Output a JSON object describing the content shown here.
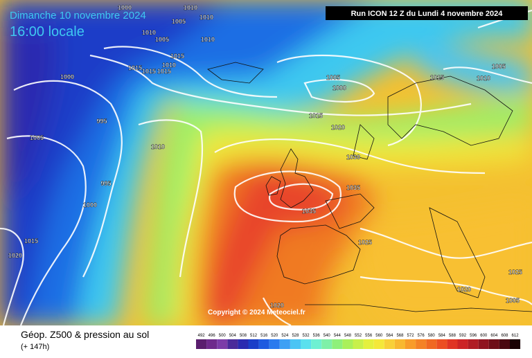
{
  "header": {
    "valid_date": "Dimanche 10 novembre 2024",
    "local_time": "16:00 locale",
    "run": "Run ICON 12 Z du Lundi 4 novembre 2024"
  },
  "map": {
    "copyright": "Copyright © 2024 Meteociel.fr",
    "isobar_labels": [
      "1000",
      "1010",
      "1010",
      "1005",
      "1010",
      "1005",
      "1010",
      "1015",
      "1010",
      "1015",
      "1015",
      "1015",
      "1000",
      "1005",
      "1000",
      "1015",
      "1010",
      "1005",
      "995",
      "1005",
      "1015",
      "1020",
      "1010",
      "1030",
      "995",
      "1035",
      "1000",
      "1035",
      "1015",
      "1025",
      "1020",
      "1025",
      "1020",
      "1005",
      "1020"
    ]
  },
  "footer": {
    "title": "Géop. Z500 & pression au sol",
    "lead": "(+ 147h)"
  },
  "legend": {
    "values": [
      492,
      496,
      500,
      504,
      508,
      512,
      516,
      520,
      524,
      528,
      532,
      536,
      540,
      544,
      548,
      552,
      556,
      560,
      564,
      568,
      572,
      576,
      580,
      584,
      588,
      592,
      596,
      600,
      604,
      608,
      612
    ],
    "colors": [
      "#5a1e6e",
      "#6e2a8c",
      "#7c3ca8",
      "#4a2a9a",
      "#2a2ab0",
      "#1a3ec8",
      "#1e5ae0",
      "#2a7aee",
      "#3ea0f4",
      "#4ac4f4",
      "#5ae0ee",
      "#6ef0d2",
      "#7ef0a8",
      "#8ef07a",
      "#aaf05a",
      "#c8f04a",
      "#e4f03e",
      "#f4e83a",
      "#f8d038",
      "#f8b830",
      "#f89c2a",
      "#f48226",
      "#f06822",
      "#ec4e22",
      "#e03424",
      "#cc2426",
      "#b01c24",
      "#901420",
      "#6e0e18",
      "#4a0810",
      "#1a0204"
    ]
  }
}
